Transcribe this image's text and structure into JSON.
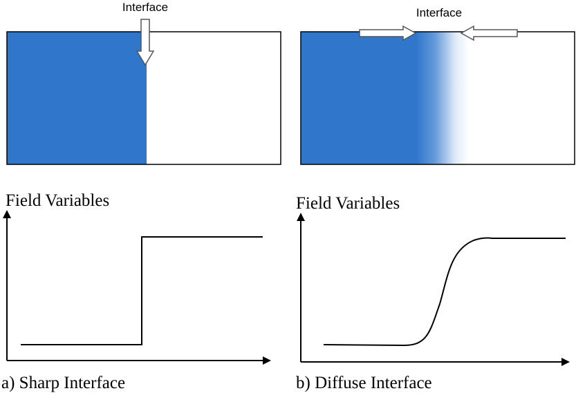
{
  "colors": {
    "phase_blue": "#3077cc",
    "outline": "#000000",
    "background": "#ffffff"
  },
  "panels": {
    "sharp": {
      "interface_label": "Interface",
      "plot_ylabel": "Field Variables",
      "caption": "a) Sharp Interface"
    },
    "diffuse": {
      "interface_label": "Interface",
      "plot_ylabel": "Field Variables",
      "caption": "b) Diffuse Interface"
    }
  }
}
